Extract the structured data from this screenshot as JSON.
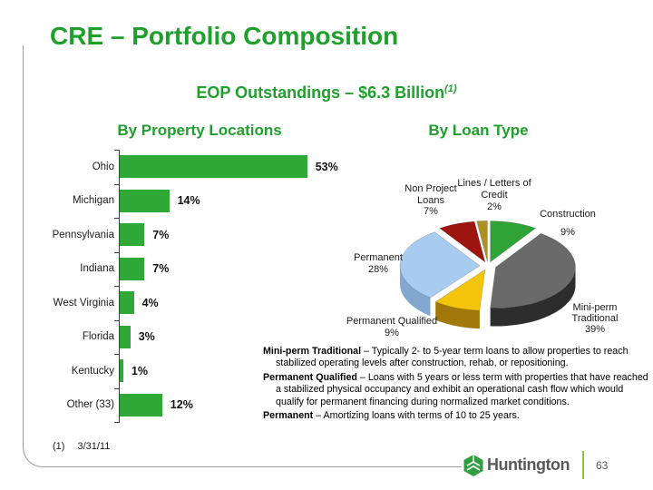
{
  "slide": {
    "title": "CRE – Portfolio Composition",
    "subtitle": {
      "text": "EOP Outstandings – $6.3 Billion",
      "superscript": "(1)"
    },
    "footnote": {
      "marker": "(1)",
      "text": "3/31/11"
    },
    "brand": "Huntington",
    "page_number": "63"
  },
  "colors": {
    "accent_green": "#1fa02d",
    "bar_green": "#30a838",
    "frame_gray": "#9c9c9c",
    "footer_gray": "#58595b",
    "divider_green": "#8bc53f"
  },
  "chart_data": [
    {
      "type": "bar",
      "title": "By Property Locations",
      "orientation": "horizontal",
      "categories": [
        "Ohio",
        "Michigan",
        "Pennsylvania",
        "Indiana",
        "West Virginia",
        "Florida",
        "Kentucky",
        "Other (33)"
      ],
      "values": [
        53,
        14,
        7,
        7,
        4,
        3,
        1,
        12
      ],
      "value_suffix": "%",
      "xlim": [
        0,
        57
      ],
      "grid": false,
      "bar_color": "#30a838"
    },
    {
      "type": "pie",
      "title": "By Loan Type",
      "style": "3d-exploded",
      "slices": [
        {
          "label": "Construction",
          "pct": 9,
          "color": "#2fa335",
          "side": "#1a6b1d",
          "label_lines": [
            "Construction",
            "9%"
          ]
        },
        {
          "label": "Mini-perm Traditional",
          "pct": 39,
          "color": "#6a6a6a",
          "side": "#2d2d2d",
          "label_lines": [
            "Mini-perm",
            "Traditional",
            "39%"
          ]
        },
        {
          "label": "Permanent Qualified",
          "pct": 9,
          "color": "#f2c50a",
          "side": "#a3780b",
          "label_lines": [
            "Permanent Qualified",
            "9%"
          ]
        },
        {
          "label": "Permanent",
          "pct": 28,
          "color": "#a8ccf0",
          "side": "#82a8cf",
          "label_lines": [
            "Permanent",
            "28%"
          ]
        },
        {
          "label": "Non Project Loans",
          "pct": 7,
          "color": "#9e1510",
          "side": "#4a0808",
          "label_lines": [
            "Non Project",
            "Loans",
            "7%"
          ]
        },
        {
          "label": "Lines / Letters of Credit",
          "pct": 2,
          "color": "#ad9025",
          "side": "#6e5a12",
          "label_lines": [
            "Lines / Letters of",
            "Credit",
            "2%"
          ]
        }
      ]
    }
  ],
  "definitions": [
    {
      "term": "Mini-perm Traditional",
      "text": " – Typically 2- to 5-year term loans to allow properties to reach stabilized operating levels after construction, rehab, or repositioning."
    },
    {
      "term": "Permanent Qualified",
      "text": " – Loans with 5 years or less term with properties that have reached a stabilized physical occupancy and exhibit an operational cash flow which would qualify for permanent financing during normalized market conditions."
    },
    {
      "term": "Permanent",
      "text": " – Amortizing loans with terms of 10 to 25 years."
    }
  ]
}
